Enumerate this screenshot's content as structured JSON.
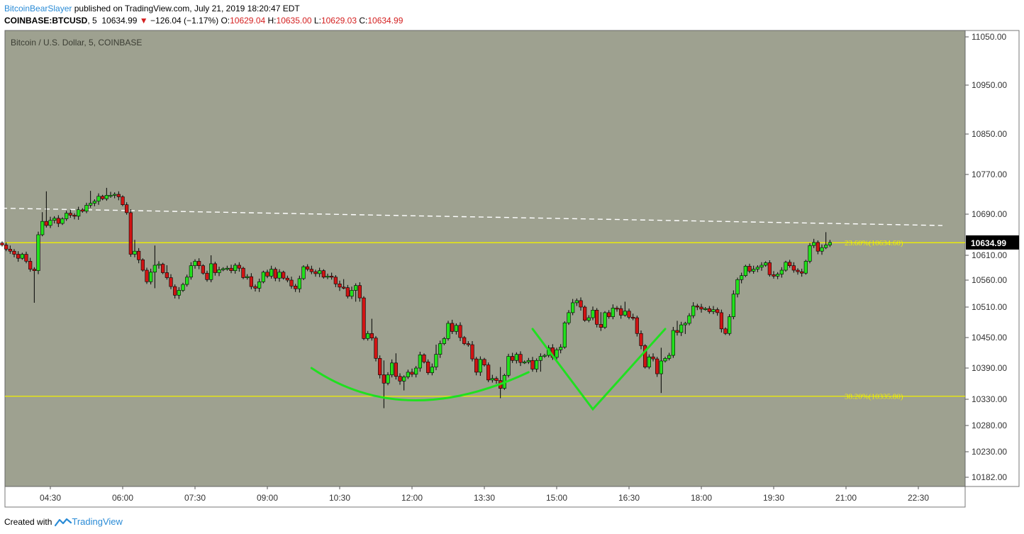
{
  "header": {
    "author": "BitcoinBearSlayer",
    "published_text": "published on TradingView.com, July 21, 2019 18:20:47 EDT",
    "symbol": "COINBASE:BTCUSD",
    "interval": "5",
    "last": "10634.99",
    "change": "−126.04 (−1.17%)",
    "open_label": "O:",
    "open": "10629.04",
    "high_label": "H:",
    "high": "10635.00",
    "low_label": "L:",
    "low": "10629.03",
    "close_label": "C:",
    "close": "10634.99"
  },
  "footer": {
    "created_with": "Created with",
    "brand": "TradingView"
  },
  "chart_data": {
    "type": "candlestick",
    "title": "Bitcoin / U.S. Dollar, 5, COINBASE",
    "colors": {
      "background": "#9ea190",
      "up": "#22e01c",
      "down": "#d01414",
      "fib": "#f0f000",
      "pattern": "#20e020",
      "trendline": "#ffffff",
      "price_badge": "#000000"
    },
    "ylim": [
      10160,
      11070
    ],
    "y_ticks": [
      "11050.00",
      "10950.00",
      "10850.00",
      "10770.00",
      "10690.00",
      "10610.00",
      "10560.00",
      "10510.00",
      "10450.00",
      "10390.00",
      "10330.00",
      "10280.00",
      "10230.00",
      "10182.00"
    ],
    "x_ticks": [
      "04:30",
      "06:00",
      "07:30",
      "09:00",
      "10:30",
      "12:00",
      "13:30",
      "15:00",
      "16:30",
      "18:00",
      "19:30",
      "21:00",
      "22:30"
    ],
    "current_price": "10634.99",
    "fib_levels": [
      {
        "label": "23.60%(10634.60)",
        "value": 10634.6
      },
      {
        "label": "38.20%(10335.80)",
        "value": 10335.8
      }
    ],
    "trendline": {
      "start": [
        "03:30",
        10702
      ],
      "end": [
        "23:00",
        10668
      ],
      "style": "dashed"
    },
    "annotations": [
      {
        "type": "curve",
        "points": [
          [
            "09:55",
            10390
          ],
          [
            "12:00",
            10328
          ],
          [
            "14:25",
            10382
          ]
        ]
      },
      {
        "type": "polyline",
        "points": [
          [
            "14:30",
            10467
          ],
          [
            "15:45",
            10311
          ],
          [
            "17:15",
            10467
          ]
        ]
      }
    ],
    "candle_interval_minutes": 5,
    "first_candle_time": "03:30",
    "closes": [
      10630,
      10622,
      10618,
      10612,
      10604,
      10612,
      10598,
      10582,
      10579,
      10650,
      10676,
      10668,
      10678,
      10682,
      10672,
      10681,
      10692,
      10688,
      10686,
      10699,
      10696,
      10708,
      10712,
      10716,
      10726,
      10721,
      10728,
      10728,
      10730,
      10725,
      10709,
      10693,
      10612,
      10618,
      10601,
      10580,
      10557,
      10576,
      10590,
      10592,
      10575,
      10565,
      10548,
      10532,
      10541,
      10552,
      10566,
      10589,
      10598,
      10589,
      10574,
      10561,
      10593,
      10575,
      10581,
      10583,
      10584,
      10579,
      10590,
      10584,
      10565,
      10567,
      10548,
      10545,
      10557,
      10576,
      10568,
      10582,
      10564,
      10576,
      10564,
      10560,
      10549,
      10544,
      10563,
      10587,
      10582,
      10577,
      10573,
      10579,
      10566,
      10568,
      10566,
      10553,
      10547,
      10546,
      10530,
      10541,
      10550,
      10527,
      10448,
      10458,
      10449,
      10409,
      10377,
      10361,
      10377,
      10400,
      10374,
      10365,
      10373,
      10382,
      10378,
      10390,
      10416,
      10402,
      10381,
      10392,
      10417,
      10438,
      10448,
      10478,
      10462,
      10474,
      10450,
      10438,
      10436,
      10408,
      10382,
      10407,
      10396,
      10367,
      10370,
      10366,
      10351,
      10376,
      10413,
      10405,
      10417,
      10401,
      10402,
      10405,
      10388,
      10405,
      10413,
      10415,
      10430,
      10411,
      10426,
      10431,
      10479,
      10499,
      10518,
      10522,
      10510,
      10484,
      10489,
      10504,
      10476,
      10470,
      10499,
      10491,
      10508,
      10507,
      10494,
      10502,
      10490,
      10489,
      10458,
      10434,
      10392,
      10412,
      10408,
      10379,
      10404,
      10409,
      10415,
      10464,
      10460,
      10475,
      10478,
      10493,
      10512,
      10510,
      10506,
      10507,
      10501,
      10505,
      10499,
      10467,
      10458,
      10491,
      10534,
      10561,
      10569,
      10588,
      10578,
      10582,
      10586,
      10590,
      10595,
      10571,
      10568,
      10572,
      10580,
      10596,
      10589,
      10580,
      10577,
      10574,
      10598,
      10629,
      10635,
      10618,
      10625,
      10630,
      10635
    ]
  }
}
